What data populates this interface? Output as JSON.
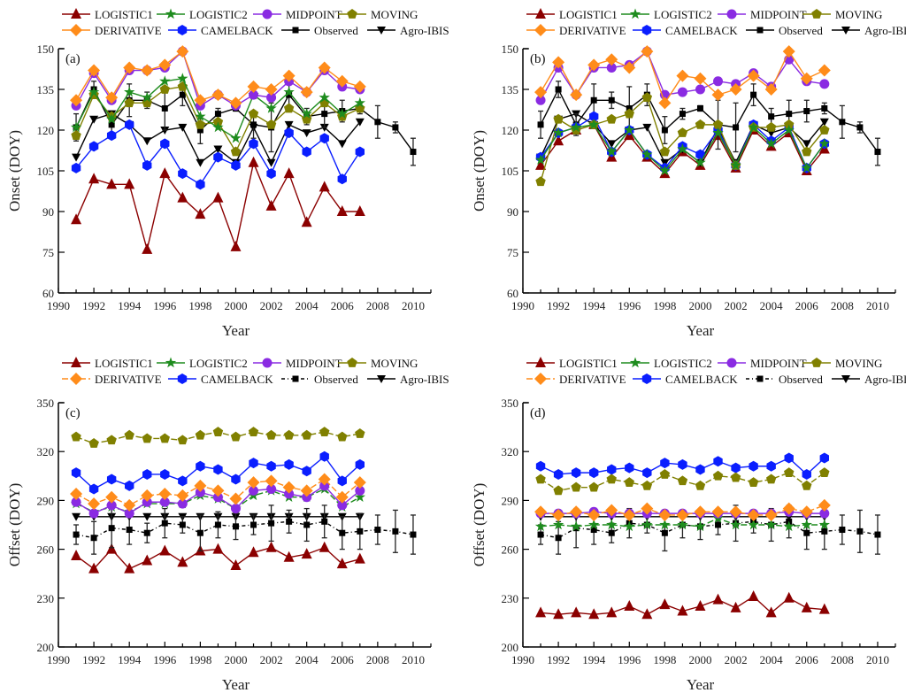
{
  "legend": [
    {
      "key": "LOGISTIC1",
      "label": "LOGISTIC1",
      "color": "#8b0000",
      "marker": "triangle-up"
    },
    {
      "key": "LOGISTIC2",
      "label": "LOGISTIC2",
      "color": "#1e8c1e",
      "marker": "star"
    },
    {
      "key": "MIDPOINT",
      "label": "MIDPOINT",
      "color": "#8a2be2",
      "marker": "circle"
    },
    {
      "key": "MOVING",
      "label": "MOVING",
      "color": "#808000",
      "marker": "pentagon"
    },
    {
      "key": "DERIVATIVE",
      "label": "DERIVATIVE",
      "color": "#ff8c1a",
      "marker": "diamond"
    },
    {
      "key": "CAMELBACK",
      "label": "CAMELBACK",
      "color": "#0a1eff",
      "marker": "hexagon"
    },
    {
      "key": "Observed",
      "label": "Observed",
      "color": "#000000",
      "marker": "square"
    },
    {
      "key": "AgroIBIS",
      "label": "Agro-IBIS",
      "color": "#000000",
      "marker": "triangle-down"
    }
  ],
  "chart_data": [
    {
      "type": "line",
      "panel_label": "(a)",
      "title": "",
      "xlabel": "Year",
      "ylabel": "Onset  (DOY)",
      "xlim": [
        1990,
        2011
      ],
      "ylim": [
        60,
        150
      ],
      "xticks": [
        1990,
        1992,
        1994,
        1996,
        1998,
        2000,
        2002,
        2004,
        2006,
        2008,
        2010
      ],
      "yticks": [
        60,
        75,
        90,
        105,
        120,
        135,
        150
      ],
      "legend_position": "top",
      "grid": false,
      "x": [
        1991,
        1992,
        1993,
        1994,
        1995,
        1996,
        1997,
        1998,
        1999,
        2000,
        2001,
        2002,
        2003,
        2004,
        2005,
        2006,
        2007
      ],
      "series": [
        {
          "name": "LOGISTIC1",
          "values": [
            87,
            102,
            100,
            100,
            76,
            104,
            95,
            89,
            95,
            77,
            108,
            92,
            104,
            86,
            99,
            90,
            90
          ]
        },
        {
          "name": "LOGISTIC2",
          "values": [
            121,
            134,
            124,
            134,
            132,
            138,
            139,
            125,
            121,
            117,
            133,
            128,
            134,
            126,
            132,
            126,
            130
          ]
        },
        {
          "name": "MIDPOINT",
          "values": [
            129,
            141,
            131,
            142,
            142,
            143,
            149,
            129,
            133,
            129,
            133,
            132,
            138,
            134,
            142,
            136,
            135
          ]
        },
        {
          "name": "MOVING",
          "values": [
            118,
            133,
            125,
            130,
            130,
            135,
            136,
            122,
            123,
            112,
            126,
            122,
            128,
            124,
            130,
            125,
            128
          ]
        },
        {
          "name": "DERIVATIVE",
          "values": [
            131,
            142,
            132,
            143,
            142,
            144,
            149,
            131,
            133,
            130,
            136,
            135,
            140,
            134,
            143,
            138,
            136
          ]
        },
        {
          "name": "CAMELBACK",
          "values": [
            106,
            114,
            118,
            122,
            107,
            115,
            104,
            100,
            110,
            107,
            115,
            104,
            119,
            112,
            117,
            102,
            112
          ]
        },
        {
          "name": "Observed",
          "x": [
            1991,
            1992,
            1993,
            1994,
            1995,
            1996,
            1997,
            1998,
            1999,
            2000,
            2001,
            2002,
            2003,
            2004,
            2005,
            2006,
            2007,
            2008,
            2009,
            2010
          ],
          "values": [
            121,
            135,
            122,
            131,
            131,
            128,
            133,
            120,
            126,
            128,
            122,
            121,
            133,
            125,
            126,
            127,
            128,
            123,
            121,
            112
          ],
          "errors": [
            5,
            3,
            4,
            6,
            3,
            8,
            4,
            5,
            2,
            1,
            5,
            9,
            4,
            3,
            5,
            4,
            2,
            6,
            2,
            5
          ]
        },
        {
          "name": "Agro-IBIS",
          "values": [
            110,
            124,
            126,
            122,
            116,
            120,
            121,
            108,
            113,
            108,
            121,
            108,
            122,
            119,
            121,
            115,
            123
          ]
        }
      ]
    },
    {
      "type": "line",
      "panel_label": "(b)",
      "title": "",
      "xlabel": "Year",
      "ylabel": "Onset  (DOY)",
      "xlim": [
        1990,
        2011
      ],
      "ylim": [
        60,
        150
      ],
      "xticks": [
        1990,
        1992,
        1994,
        1996,
        1998,
        2000,
        2002,
        2004,
        2006,
        2008,
        2010
      ],
      "yticks": [
        60,
        75,
        90,
        105,
        120,
        135,
        150
      ],
      "legend_position": "top",
      "grid": false,
      "x": [
        1991,
        1992,
        1993,
        1994,
        1995,
        1996,
        1997,
        1998,
        1999,
        2000,
        2001,
        2002,
        2003,
        2004,
        2005,
        2006,
        2007
      ],
      "series": [
        {
          "name": "LOGISTIC1",
          "values": [
            107,
            116,
            120,
            122,
            110,
            118,
            110,
            104,
            112,
            107,
            118,
            106,
            120,
            114,
            119,
            105,
            113
          ]
        },
        {
          "name": "LOGISTIC2",
          "values": [
            109,
            119,
            121,
            122,
            112,
            120,
            111,
            105,
            113,
            108,
            119,
            107,
            121,
            115,
            120,
            106,
            115
          ]
        },
        {
          "name": "MIDPOINT",
          "values": [
            131,
            143,
            133,
            143,
            143,
            144,
            149,
            133,
            134,
            135,
            138,
            137,
            141,
            136,
            146,
            138,
            137
          ]
        },
        {
          "name": "MOVING",
          "values": [
            101,
            124,
            120,
            122,
            124,
            126,
            132,
            112,
            119,
            122,
            122,
            107,
            121,
            121,
            122,
            112,
            120
          ]
        },
        {
          "name": "DERIVATIVE",
          "values": [
            134,
            145,
            133,
            144,
            146,
            143,
            149,
            130,
            140,
            139,
            133,
            135,
            140,
            135,
            149,
            139,
            142
          ]
        },
        {
          "name": "CAMELBACK",
          "values": [
            110,
            119,
            121,
            125,
            112,
            120,
            111,
            106,
            114,
            111,
            120,
            107,
            122,
            116,
            121,
            106,
            115
          ]
        },
        {
          "name": "Observed",
          "x": [
            1991,
            1992,
            1993,
            1994,
            1995,
            1996,
            1997,
            1998,
            1999,
            2000,
            2001,
            2002,
            2003,
            2004,
            2005,
            2006,
            2007,
            2008,
            2009,
            2010
          ],
          "values": [
            122,
            135,
            122,
            131,
            131,
            128,
            133,
            120,
            126,
            128,
            122,
            121,
            133,
            125,
            126,
            127,
            128,
            123,
            121,
            112
          ],
          "errors": [
            5,
            3,
            4,
            6,
            3,
            8,
            4,
            5,
            2,
            1,
            9,
            9,
            4,
            3,
            5,
            4,
            2,
            6,
            2,
            5
          ]
        },
        {
          "name": "Agro-IBIS",
          "values": [
            110,
            124,
            126,
            122,
            115,
            120,
            121,
            108,
            113,
            108,
            121,
            108,
            122,
            119,
            121,
            115,
            123
          ]
        }
      ]
    },
    {
      "type": "line",
      "panel_label": "(c)",
      "title": "",
      "xlabel": "Year",
      "ylabel": "Offset  (DOY)",
      "xlim": [
        1990,
        2011
      ],
      "ylim": [
        200,
        350
      ],
      "xticks": [
        1990,
        1992,
        1994,
        1996,
        1998,
        2000,
        2002,
        2004,
        2006,
        2008,
        2010
      ],
      "yticks": [
        200,
        230,
        260,
        290,
        320,
        350
      ],
      "legend_position": "top",
      "grid": false,
      "x": [
        1991,
        1992,
        1993,
        1994,
        1995,
        1996,
        1997,
        1998,
        1999,
        2000,
        2001,
        2002,
        2003,
        2004,
        2005,
        2006,
        2007
      ],
      "series": [
        {
          "name": "LOGISTIC1",
          "values": [
            256,
            248,
            260,
            248,
            253,
            259,
            252,
            259,
            260,
            250,
            258,
            261,
            255,
            257,
            261,
            251,
            254
          ]
        },
        {
          "name": "LOGISTIC2",
          "values": [
            288,
            283,
            286,
            283,
            288,
            288,
            288,
            293,
            291,
            285,
            293,
            296,
            292,
            292,
            297,
            286,
            292
          ]
        },
        {
          "name": "MIDPOINT",
          "values": [
            289,
            282,
            287,
            282,
            289,
            289,
            288,
            295,
            292,
            285,
            296,
            297,
            294,
            292,
            299,
            287,
            296
          ]
        },
        {
          "name": "MOVING",
          "values": [
            329,
            325,
            327,
            330,
            328,
            328,
            327,
            330,
            332,
            329,
            332,
            330,
            330,
            330,
            332,
            329,
            331
          ]
        },
        {
          "name": "DERIVATIVE",
          "values": [
            294,
            288,
            292,
            287,
            293,
            294,
            293,
            299,
            296,
            291,
            301,
            302,
            298,
            296,
            303,
            292,
            301
          ]
        },
        {
          "name": "CAMELBACK",
          "values": [
            307,
            297,
            303,
            299,
            306,
            306,
            302,
            311,
            309,
            303,
            313,
            311,
            312,
            308,
            317,
            302,
            312
          ]
        },
        {
          "name": "Observed",
          "x": [
            1991,
            1992,
            1993,
            1994,
            1995,
            1996,
            1997,
            1998,
            1999,
            2000,
            2001,
            2002,
            2003,
            2004,
            2005,
            2006,
            2007,
            2008,
            2009,
            2010
          ],
          "values": [
            269,
            267,
            273,
            272,
            270,
            276,
            275,
            270,
            275,
            274,
            275,
            276,
            277,
            275,
            277,
            270,
            271,
            272,
            271,
            269
          ],
          "errors": [
            6,
            10,
            12,
            9,
            6,
            9,
            5,
            11,
            8,
            8,
            6,
            11,
            7,
            10,
            10,
            10,
            11,
            9,
            13,
            12
          ]
        },
        {
          "name": "Agro-IBIS",
          "values": [
            280,
            280,
            280,
            280,
            280,
            280,
            280,
            280,
            280,
            280,
            280,
            280,
            280,
            280,
            280,
            280,
            280
          ]
        }
      ]
    },
    {
      "type": "line",
      "panel_label": "(d)",
      "title": "",
      "xlabel": "Year",
      "ylabel": "Offset  (DOY)",
      "xlim": [
        1990,
        2011
      ],
      "ylim": [
        200,
        350
      ],
      "xticks": [
        1990,
        1992,
        1994,
        1996,
        1998,
        2000,
        2002,
        2004,
        2006,
        2008,
        2010
      ],
      "yticks": [
        200,
        230,
        260,
        290,
        320,
        350
      ],
      "legend_position": "top",
      "grid": false,
      "x": [
        1991,
        1992,
        1993,
        1994,
        1995,
        1996,
        1997,
        1998,
        1999,
        2000,
        2001,
        2002,
        2003,
        2004,
        2005,
        2006,
        2007
      ],
      "series": [
        {
          "name": "LOGISTIC1",
          "values": [
            221,
            220,
            221,
            220,
            221,
            225,
            220,
            226,
            222,
            225,
            229,
            224,
            231,
            221,
            230,
            224,
            223
          ]
        },
        {
          "name": "LOGISTIC2",
          "values": [
            274,
            275,
            274,
            275,
            275,
            274,
            275,
            275,
            275,
            274,
            279,
            275,
            275,
            275,
            274,
            275,
            275
          ]
        },
        {
          "name": "MIDPOINT",
          "values": [
            282,
            282,
            282,
            283,
            282,
            282,
            282,
            282,
            282,
            282,
            282,
            282,
            282,
            282,
            283,
            282,
            282
          ]
        },
        {
          "name": "MOVING",
          "values": [
            303,
            296,
            298,
            298,
            303,
            301,
            299,
            306,
            302,
            299,
            305,
            304,
            301,
            303,
            307,
            299,
            307
          ]
        },
        {
          "name": "DERIVATIVE",
          "values": [
            283,
            281,
            283,
            281,
            284,
            281,
            285,
            281,
            281,
            283,
            283,
            283,
            281,
            281,
            285,
            283,
            287
          ]
        },
        {
          "name": "CAMELBACK",
          "values": [
            311,
            306,
            307,
            307,
            309,
            310,
            307,
            313,
            312,
            309,
            314,
            310,
            311,
            311,
            316,
            306,
            316
          ]
        },
        {
          "name": "Observed",
          "x": [
            1991,
            1992,
            1993,
            1994,
            1995,
            1996,
            1997,
            1998,
            1999,
            2000,
            2001,
            2002,
            2003,
            2004,
            2005,
            2006,
            2007,
            2008,
            2009,
            2010
          ],
          "values": [
            269,
            267,
            273,
            272,
            270,
            276,
            275,
            270,
            275,
            274,
            275,
            276,
            277,
            275,
            277,
            270,
            271,
            272,
            271,
            269
          ],
          "errors": [
            6,
            10,
            12,
            9,
            6,
            9,
            5,
            11,
            8,
            8,
            6,
            11,
            7,
            10,
            10,
            10,
            11,
            9,
            13,
            12
          ]
        },
        {
          "name": "Agro-IBIS",
          "values": [
            280,
            280,
            280,
            280,
            280,
            280,
            280,
            280,
            280,
            280,
            280,
            280,
            280,
            280,
            280,
            280,
            280
          ]
        }
      ]
    }
  ]
}
